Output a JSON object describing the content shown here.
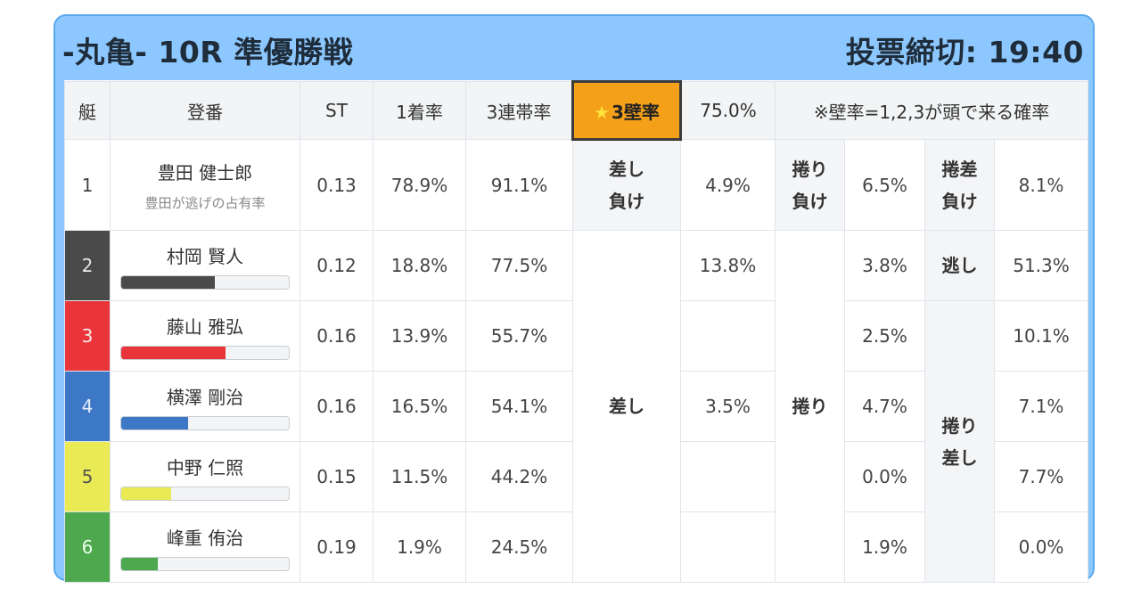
{
  "header": {
    "title": "-丸亀- 10R 準優勝戦",
    "deadline_label": "投票締切:",
    "deadline_time": "19:40"
  },
  "columns": {
    "boat": "艇",
    "racer": "登番",
    "st": "ST",
    "win": "1着率",
    "top3": "3連帯率",
    "wall_label": "3壁率",
    "wall_value": "75.0%",
    "note": "※壁率=1,2,3が頭で来る確率"
  },
  "racers": [
    {
      "num": "1",
      "name": "豊田 健士郎",
      "sub": "豊田が逃げの占有率",
      "st": "0.13",
      "win": "78.9%",
      "top3": "91.1%"
    },
    {
      "num": "2",
      "name": "村岡 賢人",
      "st": "0.12",
      "win": "18.8%",
      "top3": "77.5%",
      "bar": 0.56,
      "bar_color": "#4a4a4a"
    },
    {
      "num": "3",
      "name": "藤山 雅弘",
      "st": "0.16",
      "win": "13.9%",
      "top3": "55.7%",
      "bar": 0.62,
      "bar_color": "#e9353a"
    },
    {
      "num": "4",
      "name": "横澤 剛治",
      "st": "0.16",
      "win": "16.5%",
      "top3": "54.1%",
      "bar": 0.4,
      "bar_color": "#3d78c7"
    },
    {
      "num": "5",
      "name": "中野 仁照",
      "st": "0.15",
      "win": "11.5%",
      "top3": "44.2%",
      "bar": 0.3,
      "bar_color": "#eaea55"
    },
    {
      "num": "6",
      "name": "峰重 侑治",
      "st": "0.19",
      "win": "1.9%",
      "top3": "24.5%",
      "bar": 0.22,
      "bar_color": "#4ea84e"
    }
  ],
  "patterns": {
    "sashi_make": "差し負け",
    "makuri_make": "捲り負け",
    "makurisashi_make": "捲差負け",
    "nige": "逃し",
    "sashi": "差し",
    "makuri": "捲り",
    "makurisashi": "捲り差し"
  },
  "values": {
    "sashi_make": "4.9%",
    "makuri_make": "6.5%",
    "makurisashi_make": "8.1%",
    "nige": "51.3%",
    "sashi_r2": "13.8%",
    "sashi_r4": "3.5%",
    "makuri": [
      "3.8%",
      "2.5%",
      "4.7%",
      "0.0%",
      "1.9%"
    ],
    "makurisashi": [
      "10.1%",
      "7.1%",
      "7.7%",
      "0.0%"
    ]
  }
}
